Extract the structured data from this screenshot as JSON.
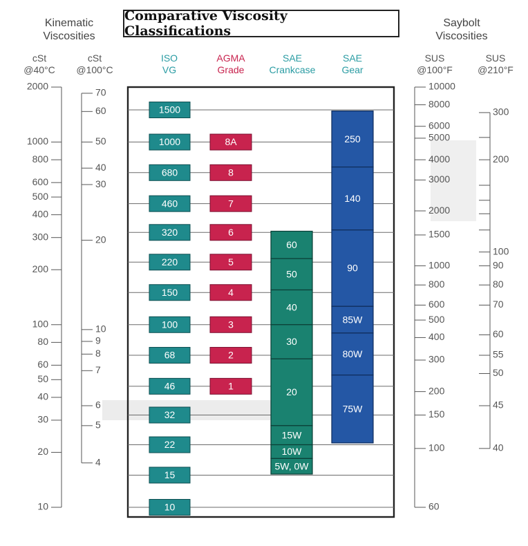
{
  "title": "Comparative Viscosity Classifications",
  "colors": {
    "iso": "#1f8a8c",
    "iso_dark": "#1b7a6e",
    "agma": "#c8234e",
    "sae_crank": "#1a8270",
    "sae_gear": "#2457a5",
    "text": "#555555",
    "iso_head": "#2a9ca3",
    "agma_head": "#c8234e",
    "sae_head": "#2a9ca3"
  },
  "headers": {
    "kinematic": [
      "Kinematic",
      "Viscosities"
    ],
    "saybolt": [
      "Saybolt",
      "Viscosities"
    ],
    "cst40": [
      "cSt",
      "@40°C"
    ],
    "cst100": [
      "cSt",
      "@100°C"
    ],
    "iso": [
      "ISO",
      "VG"
    ],
    "agma": [
      "AGMA",
      "Grade"
    ],
    "sae_crank": [
      "SAE",
      "Crankcase"
    ],
    "sae_gear": [
      "SAE",
      "Gear"
    ],
    "sus100": [
      "SUS",
      "@100°F"
    ],
    "sus210": [
      "SUS",
      "@210°F"
    ]
  },
  "chart_data": {
    "type": "table",
    "title": "Comparative Viscosity Classifications",
    "y_scale": "log",
    "y_unit": "cSt @40°C",
    "ylim": [
      10,
      2000
    ],
    "scales": {
      "cst40": [
        {
          "label": "2000",
          "v": 2000
        },
        {
          "label": "1000",
          "v": 1000
        },
        {
          "label": "800",
          "v": 800
        },
        {
          "label": "600",
          "v": 600
        },
        {
          "label": "500",
          "v": 500
        },
        {
          "label": "400",
          "v": 400
        },
        {
          "label": "300",
          "v": 300
        },
        {
          "label": "200",
          "v": 200
        },
        {
          "label": "100",
          "v": 100
        },
        {
          "label": "80",
          "v": 80
        },
        {
          "label": "60",
          "v": 60
        },
        {
          "label": "50",
          "v": 50
        },
        {
          "label": "40",
          "v": 40
        },
        {
          "label": "30",
          "v": 30
        },
        {
          "label": "20",
          "v": 20
        },
        {
          "label": "10",
          "v": 10
        }
      ],
      "cst100": [
        {
          "label": "70",
          "v": 1850
        },
        {
          "label": "60",
          "v": 1470
        },
        {
          "label": "50",
          "v": 1000
        },
        {
          "label": "40",
          "v": 720
        },
        {
          "label": "30",
          "v": 585
        },
        {
          "label": "20",
          "v": 290
        },
        {
          "label": "10",
          "v": 94
        },
        {
          "label": "9",
          "v": 81
        },
        {
          "label": "8",
          "v": 69
        },
        {
          "label": "7",
          "v": 56
        },
        {
          "label": "6",
          "v": 36
        },
        {
          "label": "5",
          "v": 28
        },
        {
          "label": "4",
          "v": 17.5
        }
      ],
      "sus100": [
        {
          "label": "10000",
          "v": 2000
        },
        {
          "label": "8000",
          "v": 1600
        },
        {
          "label": "6000",
          "v": 1220
        },
        {
          "label": "5000",
          "v": 1050
        },
        {
          "label": "4000",
          "v": 800
        },
        {
          "label": "3000",
          "v": 620
        },
        {
          "label": "2000",
          "v": 420
        },
        {
          "label": "1500",
          "v": 310
        },
        {
          "label": "1000",
          "v": 210
        },
        {
          "label": "800",
          "v": 165
        },
        {
          "label": "600",
          "v": 128
        },
        {
          "label": "500",
          "v": 106
        },
        {
          "label": "400",
          "v": 85
        },
        {
          "label": "300",
          "v": 64
        },
        {
          "label": "200",
          "v": 43
        },
        {
          "label": "150",
          "v": 32
        },
        {
          "label": "100",
          "v": 21
        },
        {
          "label": "60",
          "v": 10
        }
      ],
      "sus210_labeled": [
        {
          "label": "300",
          "v": 1450
        },
        {
          "label": "200",
          "v": 800
        },
        {
          "label": "100",
          "v": 250
        },
        {
          "label": "90",
          "v": 210
        },
        {
          "label": "80",
          "v": 165
        },
        {
          "label": "70",
          "v": 128
        },
        {
          "label": "60",
          "v": 88
        },
        {
          "label": "55",
          "v": 68
        },
        {
          "label": "50",
          "v": 54
        },
        {
          "label": "45",
          "v": 36
        },
        {
          "label": "40",
          "v": 21
        }
      ],
      "sus210_minor": [
        1060,
        580,
        480,
        405,
        330
      ]
    },
    "iso_vg": [
      {
        "label": "1500",
        "v": 1500
      },
      {
        "label": "1000",
        "v": 1000
      },
      {
        "label": "680",
        "v": 680
      },
      {
        "label": "460",
        "v": 460
      },
      {
        "label": "320",
        "v": 320
      },
      {
        "label": "220",
        "v": 220
      },
      {
        "label": "150",
        "v": 150
      },
      {
        "label": "100",
        "v": 100
      },
      {
        "label": "68",
        "v": 68
      },
      {
        "label": "46",
        "v": 46
      },
      {
        "label": "32",
        "v": 32
      },
      {
        "label": "22",
        "v": 22
      },
      {
        "label": "15",
        "v": 15
      },
      {
        "label": "10",
        "v": 10
      }
    ],
    "agma": [
      {
        "label": "8A",
        "v": 1000
      },
      {
        "label": "8",
        "v": 680
      },
      {
        "label": "7",
        "v": 460
      },
      {
        "label": "6",
        "v": 320
      },
      {
        "label": "5",
        "v": 220
      },
      {
        "label": "4",
        "v": 150
      },
      {
        "label": "3",
        "v": 100
      },
      {
        "label": "2",
        "v": 68
      },
      {
        "label": "1",
        "v": 46
      }
    ],
    "sae_crankcase": [
      {
        "label": "60",
        "from": 230,
        "to": 325
      },
      {
        "label": "50",
        "from": 155,
        "to": 230
      },
      {
        "label": "40",
        "from": 100,
        "to": 155
      },
      {
        "label": "30",
        "from": 65,
        "to": 100
      },
      {
        "label": "20",
        "from": 28,
        "to": 65
      },
      {
        "label": "15W",
        "from": 22,
        "to": 28
      },
      {
        "label": "10W",
        "from": 18.5,
        "to": 22
      },
      {
        "label": "5W, 0W",
        "from": 15.2,
        "to": 18.5
      }
    ],
    "sae_gear": [
      {
        "label": "250",
        "from": 730,
        "to": 1480
      },
      {
        "label": "140",
        "from": 330,
        "to": 730
      },
      {
        "label": "90",
        "from": 126,
        "to": 330
      },
      {
        "label": "85W",
        "from": 90,
        "to": 126
      },
      {
        "label": "80W",
        "from": 53,
        "to": 90
      },
      {
        "label": "75W",
        "from": 22.5,
        "to": 53
      }
    ]
  }
}
